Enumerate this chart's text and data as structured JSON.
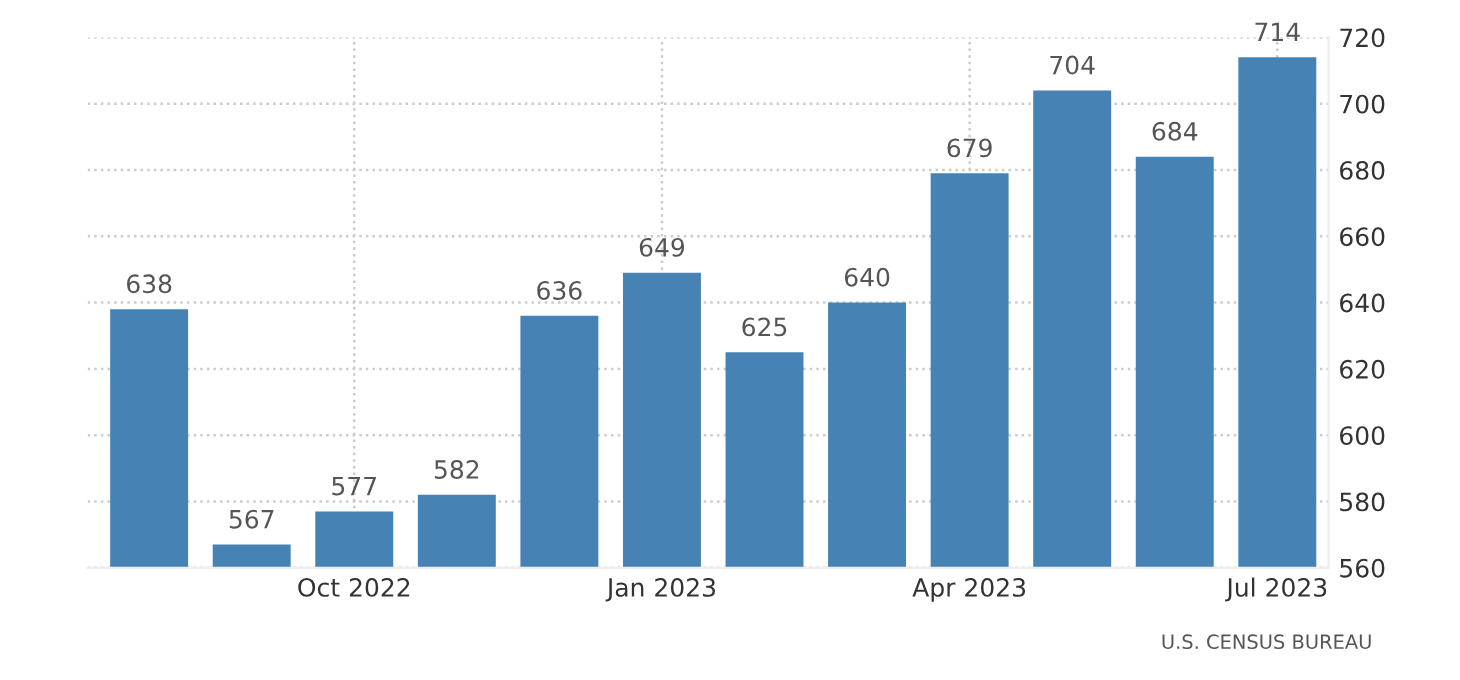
{
  "chart_data": {
    "type": "bar",
    "categories": [
      null,
      null,
      "Oct 2022",
      null,
      null,
      "Jan 2023",
      null,
      null,
      "Apr 2023",
      null,
      null,
      "Jul 2023"
    ],
    "values": [
      638,
      567,
      577,
      582,
      636,
      649,
      625,
      640,
      679,
      704,
      684,
      714
    ],
    "color": "#4682b4",
    "ylim": [
      560,
      720
    ],
    "yticks": [
      560,
      580,
      600,
      620,
      640,
      660,
      680,
      700,
      720
    ],
    "grid": true,
    "data_labels": true,
    "annotations": [
      "U.S. CENSUS BUREAU"
    ]
  }
}
